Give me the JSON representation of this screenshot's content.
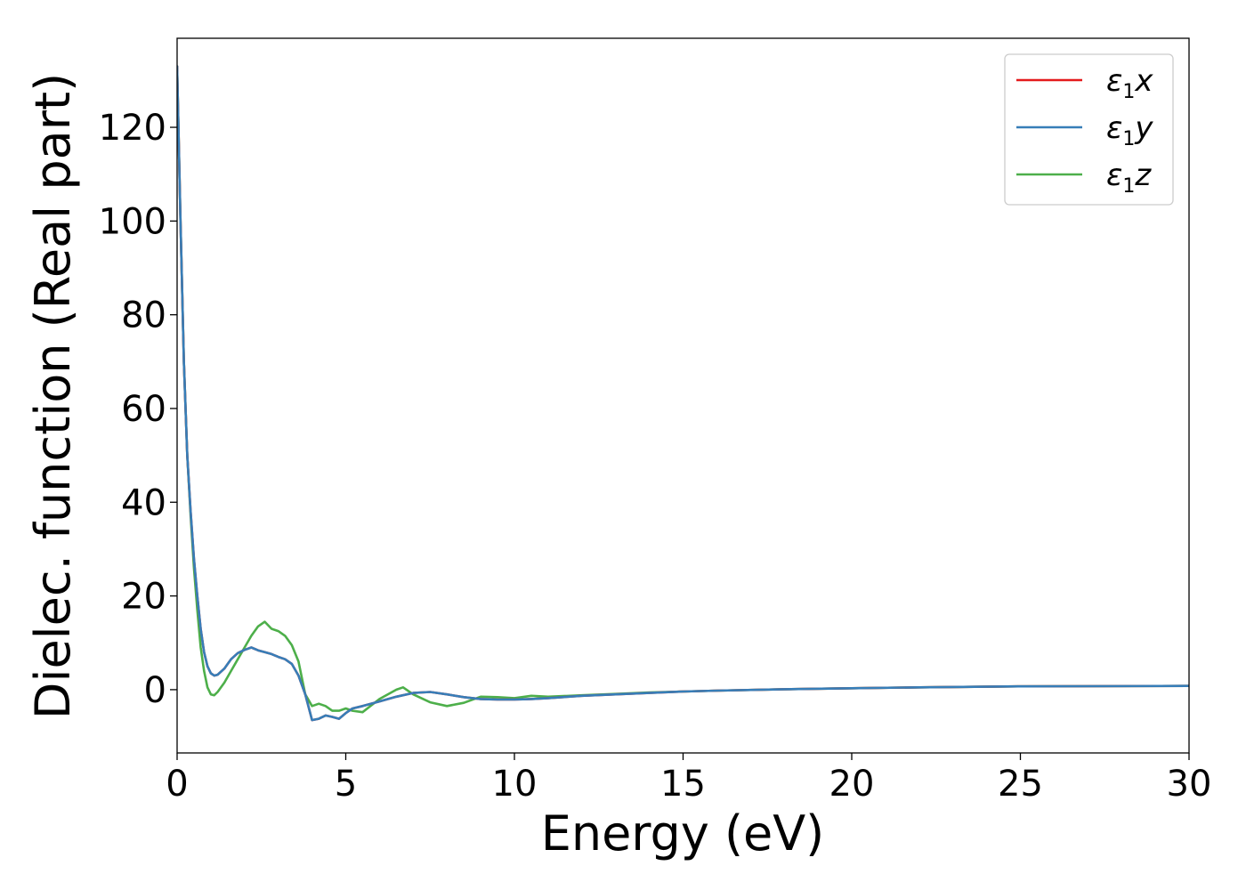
{
  "chart_data": {
    "type": "line",
    "xlabel": "Energy (eV)",
    "ylabel": "Dielec. function (Real part)",
    "xlim": [
      0,
      30
    ],
    "ylim": [
      -13.5,
      139
    ],
    "xticks": [
      0,
      5,
      10,
      15,
      20,
      25,
      30
    ],
    "yticks": [
      0,
      20,
      40,
      60,
      80,
      100,
      120
    ],
    "grid": false,
    "legend_position": "top-right",
    "series": [
      {
        "name": "ε1x",
        "legend": {
          "base": "ε",
          "sub": "1",
          "tail": "x"
        },
        "color": "#e41a1c",
        "x": [
          0,
          0.1,
          0.2,
          0.3,
          0.4,
          0.5,
          0.6,
          0.7,
          0.8,
          0.9,
          1.0,
          1.1,
          1.2,
          1.4,
          1.6,
          1.8,
          2.0,
          2.2,
          2.4,
          2.6,
          2.8,
          3.0,
          3.2,
          3.4,
          3.6,
          3.8,
          4.0,
          4.2,
          4.4,
          4.6,
          4.8,
          5.0,
          5.2,
          5.5,
          6.0,
          6.5,
          7.0,
          7.5,
          8.0,
          8.5,
          9.0,
          9.5,
          10.0,
          10.5,
          11.0,
          12.0,
          13.0,
          14.0,
          15.0,
          16.0,
          18.0,
          20.0,
          22.0,
          25.0,
          27.0,
          30.0
        ],
        "y": [
          133,
          100,
          70,
          50,
          38,
          28,
          20,
          13,
          8,
          5,
          3.5,
          3,
          3.2,
          4.5,
          6.5,
          7.8,
          8.5,
          9,
          8.4,
          8,
          7.6,
          7,
          6.5,
          5.5,
          3,
          -1,
          -6.5,
          -6.2,
          -5.5,
          -5.8,
          -6.2,
          -5,
          -4,
          -3.5,
          -2.5,
          -1.5,
          -0.7,
          -0.5,
          -1,
          -1.6,
          -2,
          -2.1,
          -2.1,
          -2,
          -1.8,
          -1.3,
          -1,
          -0.7,
          -0.4,
          -0.2,
          0.1,
          0.3,
          0.5,
          0.7,
          0.75,
          0.8
        ]
      },
      {
        "name": "ε1y",
        "legend": {
          "base": "ε",
          "sub": "1",
          "tail": "y"
        },
        "color": "#377eb8",
        "x": [
          0,
          0.1,
          0.2,
          0.3,
          0.4,
          0.5,
          0.6,
          0.7,
          0.8,
          0.9,
          1.0,
          1.1,
          1.2,
          1.4,
          1.6,
          1.8,
          2.0,
          2.2,
          2.4,
          2.6,
          2.8,
          3.0,
          3.2,
          3.4,
          3.6,
          3.8,
          4.0,
          4.2,
          4.4,
          4.6,
          4.8,
          5.0,
          5.2,
          5.5,
          6.0,
          6.5,
          7.0,
          7.5,
          8.0,
          8.5,
          9.0,
          9.5,
          10.0,
          10.5,
          11.0,
          12.0,
          13.0,
          14.0,
          15.0,
          16.0,
          18.0,
          20.0,
          22.0,
          25.0,
          27.0,
          30.0
        ],
        "y": [
          133,
          100,
          70,
          50,
          38,
          28,
          20,
          13,
          8,
          5,
          3.5,
          3,
          3.2,
          4.5,
          6.5,
          7.8,
          8.5,
          9,
          8.4,
          8,
          7.6,
          7,
          6.5,
          5.5,
          3,
          -1,
          -6.5,
          -6.2,
          -5.5,
          -5.8,
          -6.2,
          -5,
          -4,
          -3.5,
          -2.5,
          -1.5,
          -0.7,
          -0.5,
          -1,
          -1.6,
          -2,
          -2.1,
          -2.1,
          -2,
          -1.8,
          -1.3,
          -1,
          -0.7,
          -0.4,
          -0.2,
          0.1,
          0.3,
          0.5,
          0.7,
          0.75,
          0.8
        ]
      },
      {
        "name": "ε1z",
        "legend": {
          "base": "ε",
          "sub": "1",
          "tail": "z"
        },
        "color": "#4daf4a",
        "x": [
          0,
          0.1,
          0.2,
          0.3,
          0.4,
          0.5,
          0.6,
          0.7,
          0.8,
          0.9,
          1.0,
          1.1,
          1.2,
          1.4,
          1.6,
          1.8,
          2.0,
          2.2,
          2.4,
          2.6,
          2.8,
          3.0,
          3.2,
          3.4,
          3.6,
          3.8,
          4.0,
          4.2,
          4.4,
          4.6,
          4.8,
          5.0,
          5.2,
          5.5,
          6.0,
          6.5,
          6.7,
          7.0,
          7.5,
          8.0,
          8.5,
          9.0,
          9.5,
          10.0,
          10.5,
          11.0,
          12.0,
          13.0,
          14.0,
          15.0,
          16.0,
          18.0,
          20.0,
          22.0,
          25.0,
          27.0,
          30.0
        ],
        "y": [
          133,
          100,
          70,
          50,
          37,
          26,
          17,
          9,
          4,
          0.5,
          -1,
          -1.2,
          -0.5,
          1.5,
          4,
          6.5,
          9,
          11.5,
          13.5,
          14.5,
          13,
          12.5,
          11.5,
          9.5,
          6,
          -1,
          -3.5,
          -3,
          -3.5,
          -4.5,
          -4.5,
          -4,
          -4.5,
          -4.8,
          -2,
          0,
          0.5,
          -1,
          -2.7,
          -3.5,
          -2.8,
          -1.5,
          -1.6,
          -1.8,
          -1.3,
          -1.5,
          -1.2,
          -0.9,
          -0.6,
          -0.4,
          -0.2,
          0.1,
          0.3,
          0.5,
          0.7,
          0.75,
          0.8
        ]
      }
    ]
  }
}
